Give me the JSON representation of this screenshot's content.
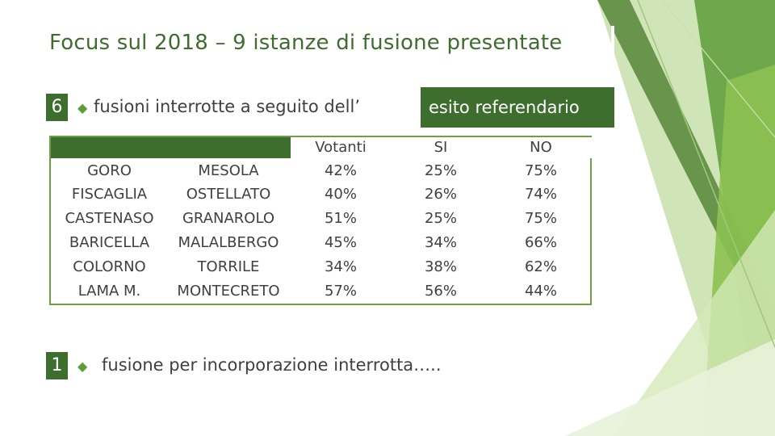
{
  "title": "Focus sul 2018 – 9 istanze di fusione presentate",
  "bullets": [
    {
      "count": "6",
      "text_before": "fusioni interrotte a seguito dell’",
      "text_highlight": "esito referendario"
    },
    {
      "count": "1",
      "text_before": "fusione per incorporazione interrotta…..",
      "text_highlight": ""
    }
  ],
  "table": {
    "headers": [
      "",
      "",
      "Votanti",
      "SI",
      "NO"
    ],
    "rows": [
      [
        "GORO",
        "MESOLA",
        "42%",
        "25%",
        "75%"
      ],
      [
        "FISCAGLIA",
        "OSTELLATO",
        "40%",
        "26%",
        "74%"
      ],
      [
        "CASTENASO",
        "GRANAROLO",
        "51%",
        "25%",
        "75%"
      ],
      [
        "BARICELLA",
        "MALALBERGO",
        "45%",
        "34%",
        "66%"
      ],
      [
        "COLORNO",
        "TORRILE",
        "34%",
        "38%",
        "62%"
      ],
      [
        "LAMA M.",
        "MONTECRETO",
        "57%",
        "56%",
        "44%"
      ]
    ]
  },
  "colors": {
    "dark_green": "#3d6e2e",
    "light_green": "#8cc152",
    "pale_green": "#d4e8b8"
  },
  "icons": {
    "bullet": "arrow-bullet-icon"
  }
}
